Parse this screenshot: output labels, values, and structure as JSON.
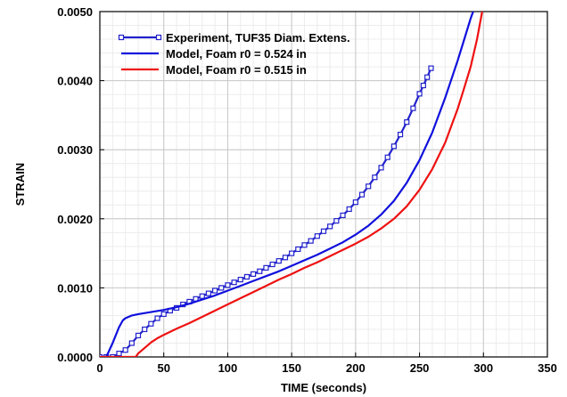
{
  "chart_data": {
    "type": "line",
    "title": "",
    "xlabel": "TIME  (seconds)",
    "ylabel": "STRAIN",
    "xlim": [
      0,
      350
    ],
    "ylim": [
      0,
      0.005
    ],
    "x_ticks": [
      0,
      50,
      100,
      150,
      200,
      250,
      300,
      350
    ],
    "y_ticks": [
      0.0,
      0.001,
      0.002,
      0.003,
      0.004,
      0.005
    ],
    "x_tick_labels": [
      "0",
      "50",
      "100",
      "150",
      "200",
      "250",
      "300",
      "350"
    ],
    "y_tick_labels": [
      "0.0000",
      "0.0010",
      "0.0020",
      "0.0030",
      "0.0040",
      "0.0050"
    ],
    "grid": true,
    "grid_minor": true,
    "legend_position": "top-left",
    "series": [
      {
        "name": "Experiment, TUF35 Diam. Extens.",
        "color": "#2222cc",
        "marker": "square",
        "x": [
          0,
          5,
          10,
          15,
          20,
          25,
          30,
          35,
          40,
          45,
          50,
          55,
          60,
          65,
          70,
          75,
          80,
          85,
          90,
          95,
          100,
          105,
          110,
          115,
          120,
          125,
          130,
          135,
          140,
          145,
          150,
          155,
          160,
          165,
          170,
          175,
          180,
          185,
          190,
          195,
          200,
          205,
          210,
          215,
          220,
          225,
          230,
          235,
          240,
          245,
          250,
          253,
          256,
          259
        ],
        "y": [
          0.0,
          0.0,
          0.0,
          5e-05,
          0.0001,
          0.0002,
          0.00031,
          0.0004,
          0.00048,
          0.00056,
          0.00062,
          0.00067,
          0.00071,
          0.00076,
          0.0008,
          0.00084,
          0.00088,
          0.00092,
          0.00096,
          0.001,
          0.00104,
          0.00108,
          0.00112,
          0.00116,
          0.0012,
          0.00124,
          0.00129,
          0.00134,
          0.00139,
          0.00144,
          0.0015,
          0.00156,
          0.00162,
          0.00168,
          0.00175,
          0.00182,
          0.00189,
          0.00197,
          0.00205,
          0.00214,
          0.00224,
          0.00235,
          0.00247,
          0.0026,
          0.00274,
          0.00289,
          0.00305,
          0.00322,
          0.0034,
          0.0036,
          0.00381,
          0.00393,
          0.00405,
          0.00418
        ]
      },
      {
        "name": "Model, Foam r0 = 0.524 in",
        "color": "#1010dd",
        "marker": "none",
        "x": [
          0,
          5,
          10,
          15,
          18,
          20,
          25,
          30,
          40,
          50,
          60,
          70,
          80,
          90,
          100,
          110,
          120,
          130,
          140,
          150,
          160,
          170,
          180,
          190,
          200,
          210,
          220,
          230,
          240,
          250,
          260,
          270,
          280,
          285,
          290,
          294
        ],
        "y": [
          0.0,
          0.0,
          0.0002,
          0.00043,
          0.00053,
          0.00056,
          0.0006,
          0.00062,
          0.00065,
          0.00068,
          0.00072,
          0.00077,
          0.00083,
          0.00089,
          0.00096,
          0.00103,
          0.0011,
          0.00117,
          0.00124,
          0.00132,
          0.0014,
          0.00148,
          0.00157,
          0.00166,
          0.00177,
          0.0019,
          0.00206,
          0.00226,
          0.00252,
          0.00285,
          0.00325,
          0.00375,
          0.0043,
          0.0046,
          0.0049,
          0.0051
        ]
      },
      {
        "name": "Model, Foam r0 = 0.515 in",
        "color": "#ee1111",
        "marker": "none",
        "x": [
          0,
          10,
          20,
          28,
          30,
          35,
          40,
          45,
          50,
          60,
          70,
          80,
          90,
          100,
          110,
          120,
          130,
          140,
          150,
          160,
          170,
          180,
          190,
          200,
          210,
          220,
          230,
          240,
          250,
          260,
          270,
          280,
          285,
          290,
          295,
          300
        ],
        "y": [
          0.0,
          0.0,
          0.0,
          0.0,
          5e-05,
          0.00013,
          0.00021,
          0.00027,
          0.00032,
          0.00041,
          0.00049,
          0.00058,
          0.00067,
          0.00076,
          0.00085,
          0.00094,
          0.00103,
          0.00112,
          0.0012,
          0.00129,
          0.00137,
          0.00146,
          0.00155,
          0.00164,
          0.00174,
          0.00186,
          0.002,
          0.00218,
          0.00242,
          0.00272,
          0.0031,
          0.0036,
          0.0039,
          0.0042,
          0.0046,
          0.0051
        ]
      }
    ]
  }
}
